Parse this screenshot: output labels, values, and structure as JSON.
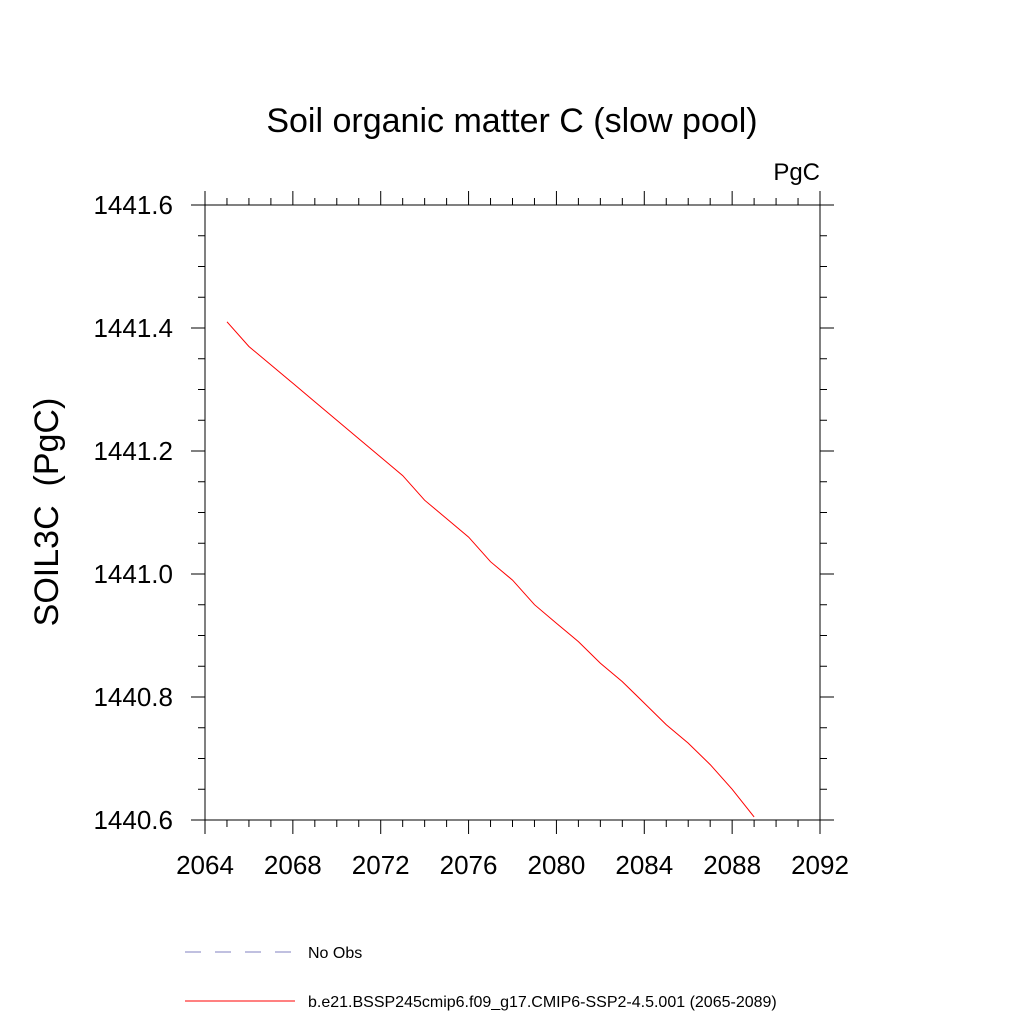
{
  "chart_data": {
    "type": "line",
    "title": "Soil organic matter C (slow pool)",
    "units_label": "PgC",
    "ylabel": "SOIL3C  (PgC)",
    "xlabel": "",
    "xlim": [
      2064,
      2092
    ],
    "ylim": [
      1440.6,
      1441.6
    ],
    "x_ticks": [
      "2064",
      "2068",
      "2072",
      "2076",
      "2080",
      "2084",
      "2088",
      "2092"
    ],
    "y_ticks": [
      "1440.6",
      "1440.8",
      "1441.0",
      "1441.2",
      "1441.4",
      "1441.6"
    ],
    "grid": false,
    "legend_position": "bottom",
    "series": [
      {
        "name": "b.e21.BSSP245cmip6.f09_g17.CMIP6-SSP2-4.5.001 (2065-2089)",
        "color": "#ff0000",
        "dash": "solid",
        "x": [
          2065,
          2066,
          2067,
          2068,
          2069,
          2070,
          2071,
          2072,
          2073,
          2074,
          2075,
          2076,
          2077,
          2078,
          2079,
          2080,
          2081,
          2082,
          2083,
          2084,
          2085,
          2086,
          2087,
          2088,
          2089
        ],
        "y": [
          1441.41,
          1441.37,
          1441.34,
          1441.31,
          1441.28,
          1441.25,
          1441.22,
          1441.19,
          1441.16,
          1441.12,
          1441.09,
          1441.06,
          1441.02,
          1440.99,
          1440.95,
          1440.92,
          1440.89,
          1440.855,
          1440.825,
          1440.79,
          1440.755,
          1440.725,
          1440.69,
          1440.65,
          1440.605
        ]
      }
    ],
    "legend": [
      {
        "label": "No Obs",
        "color": "#8080c0",
        "dash": "dashed"
      },
      {
        "label": "b.e21.BSSP245cmip6.f09_g17.CMIP6-SSP2-4.5.001 (2065-2089)",
        "color": "#ff0000",
        "dash": "solid"
      }
    ]
  }
}
